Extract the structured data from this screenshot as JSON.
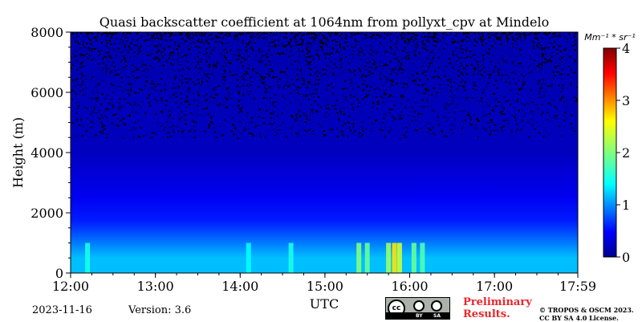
{
  "chart_data": {
    "type": "heatmap",
    "title": "Quasi backscatter coefficient at 1064nm from pollyxt_cpv at Mindelo",
    "xlabel": "UTC",
    "ylabel": "Height (m)",
    "x_tick_labels": [
      "12:00",
      "13:00",
      "14:00",
      "15:00",
      "16:00",
      "17:00",
      "17:59"
    ],
    "x_range_hours": [
      12.0,
      17.983
    ],
    "x_ticks_hours": [
      12,
      13,
      14,
      15,
      16,
      17,
      17.983
    ],
    "y_ticks": [
      0,
      2000,
      4000,
      6000,
      8000
    ],
    "ylim": [
      0,
      8000
    ],
    "colorbar": {
      "unit_label": "Mm⁻¹ * sr⁻¹",
      "range": [
        0,
        4
      ],
      "ticks": [
        0,
        1,
        2,
        3,
        4
      ],
      "colormap": "jet"
    },
    "profile_layers": [
      {
        "from_m": 0,
        "to_m": 1000,
        "value": 1.25
      },
      {
        "from_m": 1000,
        "to_m": 1500,
        "value": 0.85
      },
      {
        "from_m": 1500,
        "to_m": 2000,
        "value": 0.6
      },
      {
        "from_m": 2000,
        "to_m": 3000,
        "value": 0.45
      },
      {
        "from_m": 3000,
        "to_m": 5000,
        "value": 0.25
      },
      {
        "from_m": 5000,
        "to_m": 8000,
        "value": 0.2
      }
    ],
    "strong_layer_events_utc": [
      {
        "time": 12.2,
        "value": 1.6
      },
      {
        "time": 14.1,
        "value": 1.5
      },
      {
        "time": 14.6,
        "value": 1.6
      },
      {
        "time": 15.4,
        "value": 2.0
      },
      {
        "time": 15.5,
        "value": 1.9
      },
      {
        "time": 15.75,
        "value": 2.1
      },
      {
        "time": 15.82,
        "value": 2.6
      },
      {
        "time": 15.88,
        "value": 2.3
      },
      {
        "time": 16.05,
        "value": 1.9
      },
      {
        "time": 16.15,
        "value": 1.8
      }
    ],
    "noise_above_m": 4500
  },
  "footer": {
    "date": "2023-11-16",
    "version": "Version: 3.6",
    "preliminary_line1": "Preliminary",
    "preliminary_line2": "Results.",
    "copyright_line1": "© TROPOS & OSCM 2023.",
    "copyright_line2": "CC BY SA 4.0 License.",
    "license_badge": {
      "by": "BY",
      "sa": "SA",
      "cc": "cc"
    }
  }
}
